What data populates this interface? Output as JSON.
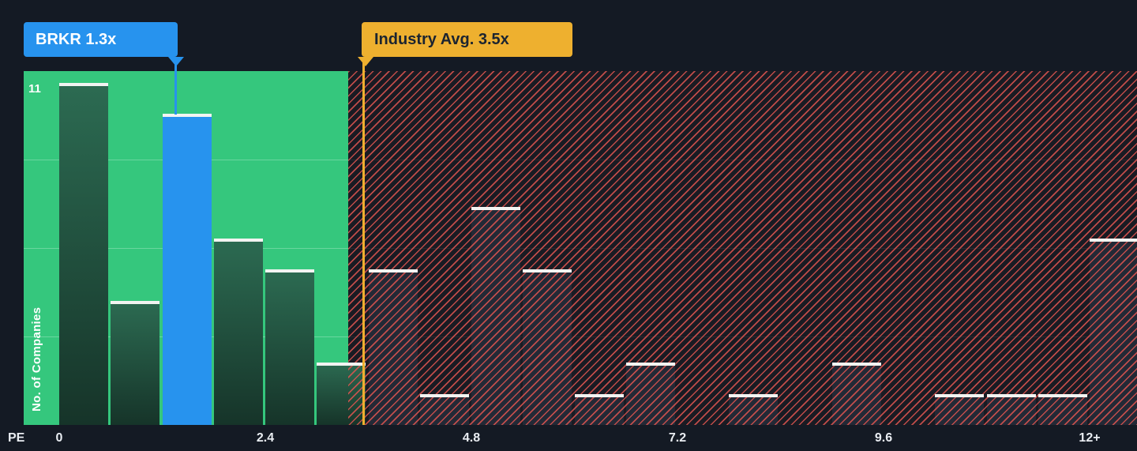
{
  "chart": {
    "brkr_callout": "BRKR 1.3x",
    "industry_callout": "Industry Avg. 3.5x",
    "y_max_label": "11",
    "x_axis_title": "PE"
  },
  "chart_data": {
    "type": "bar",
    "title": "Price-to-Earnings ratio histogram of companies vs industry average",
    "ylabel": "No. of Companies",
    "xlabel": "PE",
    "ylim": [
      0,
      11
    ],
    "grid": "horizontal-quarter-lines",
    "legend_position": "none",
    "bin_width": 0.6,
    "bin_starts": [
      0,
      0.6,
      1.2,
      1.8,
      2.4,
      3.0,
      3.6,
      4.2,
      4.8,
      5.4,
      6.0,
      6.6,
      7.2,
      7.8,
      8.4,
      9.0,
      9.6,
      10.2,
      10.8,
      11.4,
      12.0
    ],
    "values": [
      11,
      4,
      10,
      6,
      5,
      2,
      5,
      1,
      7,
      5,
      1,
      2,
      0,
      1,
      0,
      2,
      0,
      1,
      1,
      1,
      6
    ],
    "x_ticks": [
      "0",
      "2.4",
      "4.8",
      "7.2",
      "9.6",
      "12+"
    ],
    "x_tick_values": [
      0,
      2.4,
      4.8,
      7.2,
      9.6,
      12
    ],
    "highlight": {
      "label": "BRKR",
      "pe": 1.3,
      "bin_index": 2
    },
    "industry_avg": {
      "label": "Industry Avg.",
      "pe": 3.5
    },
    "zones": [
      {
        "name": "below-industry-average",
        "style": "solid-green",
        "range": [
          0,
          3.4
        ]
      },
      {
        "name": "above-industry-average",
        "style": "red-hatched",
        "range": [
          3.4,
          12.6
        ]
      }
    ]
  },
  "colors": {
    "background": "#141a24",
    "green_zone": "#35c77d",
    "green_bar_top": "#2c6b52",
    "green_bar_bottom": "#163429",
    "navy_bar": "#232936",
    "blue": "#2793ee",
    "amber": "#eeb02f",
    "amber_text": "#1b2430",
    "red_stripe": "#dd5550",
    "bar_cap": "#f2f4f2",
    "axis_text": "#e9edf2"
  }
}
